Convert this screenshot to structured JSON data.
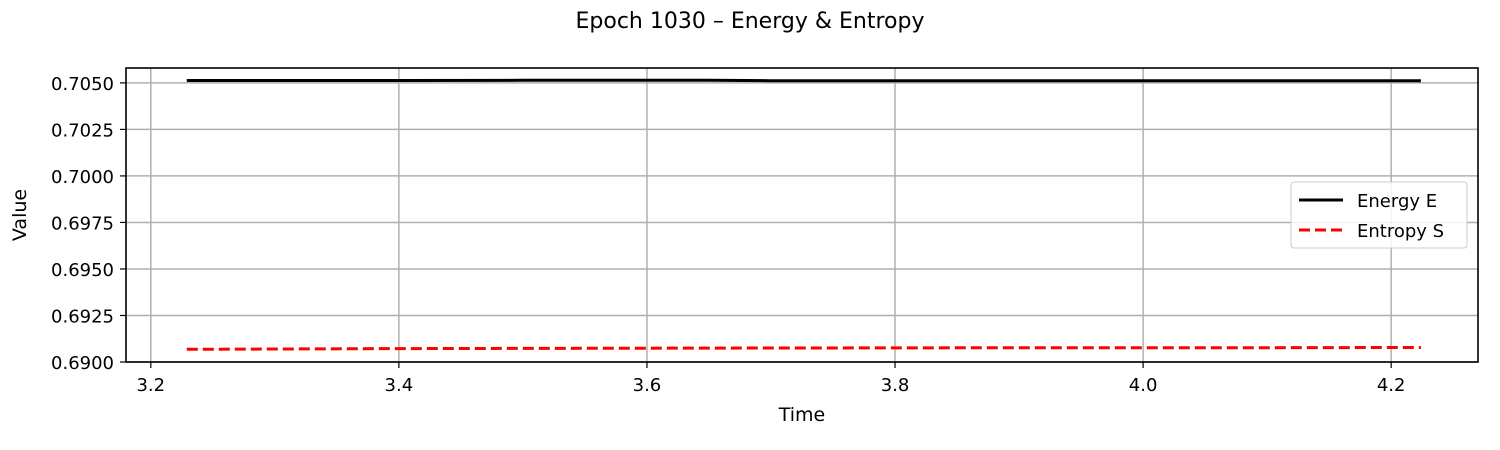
{
  "chart_data": {
    "type": "line",
    "title": "Epoch 1030 – Energy & Entropy",
    "xlabel": "Time",
    "ylabel": "Value",
    "xlim": [
      3.18,
      4.27
    ],
    "ylim": [
      0.69,
      0.7058
    ],
    "xticks": [
      "3.2",
      "3.4",
      "3.6",
      "3.8",
      "4.0",
      "4.2"
    ],
    "yticks": [
      "0.6900",
      "0.6925",
      "0.6950",
      "0.6975",
      "0.7000",
      "0.7025",
      "0.7050"
    ],
    "grid": true,
    "legend_position": "center-right",
    "series": [
      {
        "name": "Energy E",
        "color": "#000000",
        "style": "solid",
        "x": [
          3.229,
          3.3,
          3.4,
          3.5,
          3.6,
          3.65,
          3.7,
          3.8,
          3.9,
          4.0,
          4.1,
          4.2,
          4.224
        ],
        "y": [
          0.70513,
          0.70513,
          0.70513,
          0.70514,
          0.70514,
          0.70514,
          0.70512,
          0.70511,
          0.70511,
          0.70511,
          0.70511,
          0.70512,
          0.70512
        ]
      },
      {
        "name": "Entropy S",
        "color": "#ff0000",
        "style": "dashed",
        "x": [
          3.229,
          3.3,
          3.4,
          3.5,
          3.6,
          3.7,
          3.8,
          3.9,
          4.0,
          4.1,
          4.2,
          4.224
        ],
        "y": [
          0.69068,
          0.6907,
          0.69072,
          0.69073,
          0.69074,
          0.69075,
          0.69076,
          0.69077,
          0.69077,
          0.69077,
          0.69078,
          0.69078
        ]
      }
    ]
  }
}
